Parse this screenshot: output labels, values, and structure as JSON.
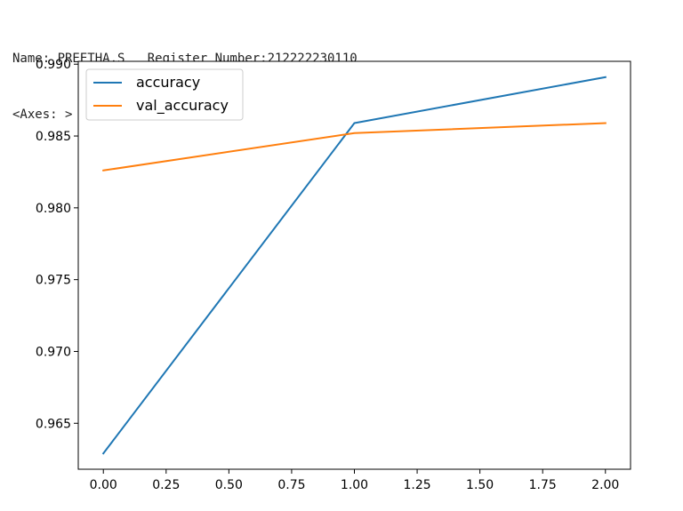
{
  "output": {
    "print_line": "Name: PREETHA.S   Register Number:212222230110",
    "repr_line": "<Axes: >"
  },
  "chart_data": {
    "type": "line",
    "title": "",
    "xlabel": "",
    "ylabel": "",
    "xlim": [
      -0.1,
      2.1
    ],
    "ylim": [
      0.9618,
      0.9902
    ],
    "xticks": [
      0.0,
      0.25,
      0.5,
      0.75,
      1.0,
      1.25,
      1.5,
      1.75,
      2.0
    ],
    "xtick_labels": [
      "0.00",
      "0.25",
      "0.50",
      "0.75",
      "1.00",
      "1.25",
      "1.50",
      "1.75",
      "2.00"
    ],
    "yticks": [
      0.965,
      0.97,
      0.975,
      0.98,
      0.985,
      0.99
    ],
    "ytick_labels": [
      "0.965",
      "0.970",
      "0.975",
      "0.980",
      "0.985",
      "0.990"
    ],
    "x": [
      0,
      1,
      2
    ],
    "series": [
      {
        "name": "accuracy",
        "values": [
          0.9629,
          0.9859,
          0.9891
        ],
        "color": "#1f77b4"
      },
      {
        "name": "val_accuracy",
        "values": [
          0.9826,
          0.9852,
          0.9859
        ],
        "color": "#ff7f0e"
      }
    ],
    "grid": false,
    "legend_position": "upper-left"
  }
}
